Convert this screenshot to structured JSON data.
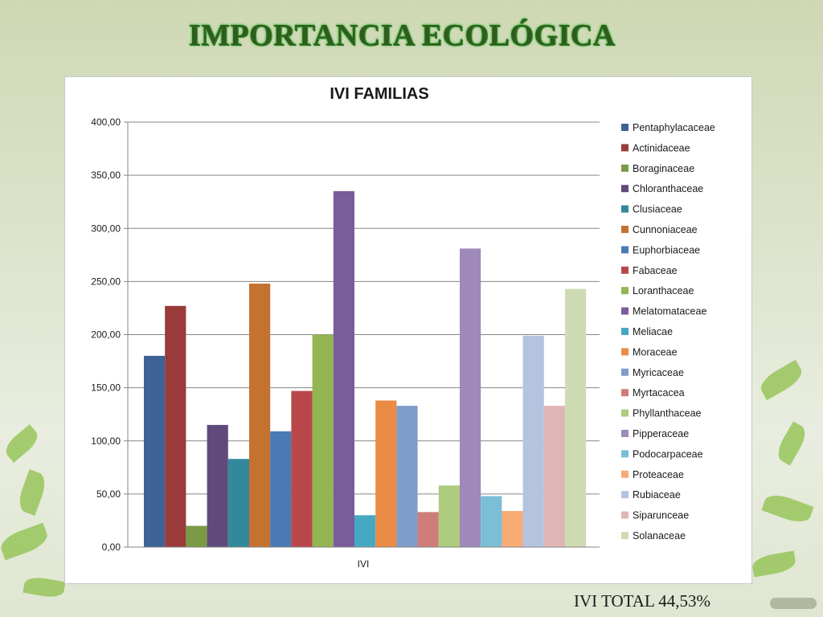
{
  "slide": {
    "title": "IMPORTANCIA ECOLÓGICA",
    "footer": "IVI TOTAL 44,53%"
  },
  "chart_data": {
    "type": "bar",
    "title": "IVI FAMILIAS",
    "xlabel": "IVI",
    "ylabel": "",
    "ylim": [
      0,
      400
    ],
    "yticks": [
      "0,00",
      "50,00",
      "100,00",
      "150,00",
      "200,00",
      "250,00",
      "300,00",
      "350,00",
      "400,00"
    ],
    "ytick_values": [
      0,
      50,
      100,
      150,
      200,
      250,
      300,
      350,
      400
    ],
    "categories": [
      "IVI"
    ],
    "grid": true,
    "legend_position": "right",
    "series": [
      {
        "name": "Pentaphylacaceae",
        "values": [
          180
        ],
        "color": "#3c6296"
      },
      {
        "name": "Actinidaceae",
        "values": [
          227
        ],
        "color": "#983b3a"
      },
      {
        "name": "Boraginaceae",
        "values": [
          20
        ],
        "color": "#7b9a45"
      },
      {
        "name": "Chloranthaceae",
        "values": [
          115
        ],
        "color": "#604a7b"
      },
      {
        "name": "Clusiaceae",
        "values": [
          83
        ],
        "color": "#33899b"
      },
      {
        "name": "Cunnoniaceae",
        "values": [
          248
        ],
        "color": "#c4722f"
      },
      {
        "name": "Euphorbiaceae",
        "values": [
          109
        ],
        "color": "#4a7ab6"
      },
      {
        "name": "Fabaceae",
        "values": [
          147
        ],
        "color": "#b9474a"
      },
      {
        "name": "Loranthaceae",
        "values": [
          200
        ],
        "color": "#93b554"
      },
      {
        "name": "Melatomataceae",
        "values": [
          335
        ],
        "color": "#7a5c9a"
      },
      {
        "name": "Meliacae",
        "values": [
          30
        ],
        "color": "#45a9c4"
      },
      {
        "name": "Moraceae",
        "values": [
          138
        ],
        "color": "#ea8c45"
      },
      {
        "name": "Myricaceae",
        "values": [
          133
        ],
        "color": "#7f9cca"
      },
      {
        "name": "Myrtacacea",
        "values": [
          33
        ],
        "color": "#cf7d7b"
      },
      {
        "name": "Phyllanthaceae",
        "values": [
          58
        ],
        "color": "#aecb7e"
      },
      {
        "name": "Pipperaceae",
        "values": [
          281
        ],
        "color": "#9e89b8"
      },
      {
        "name": "Podocarpaceae",
        "values": [
          48
        ],
        "color": "#7bbfd6"
      },
      {
        "name": "Proteaceae",
        "values": [
          34
        ],
        "color": "#f7ab74"
      },
      {
        "name": "Rubiaceae",
        "values": [
          199
        ],
        "color": "#b4c3de"
      },
      {
        "name": "Siparunceae",
        "values": [
          133
        ],
        "color": "#e0b6b5"
      },
      {
        "name": "Solanaceae",
        "values": [
          243
        ],
        "color": "#cedbb4"
      }
    ]
  }
}
